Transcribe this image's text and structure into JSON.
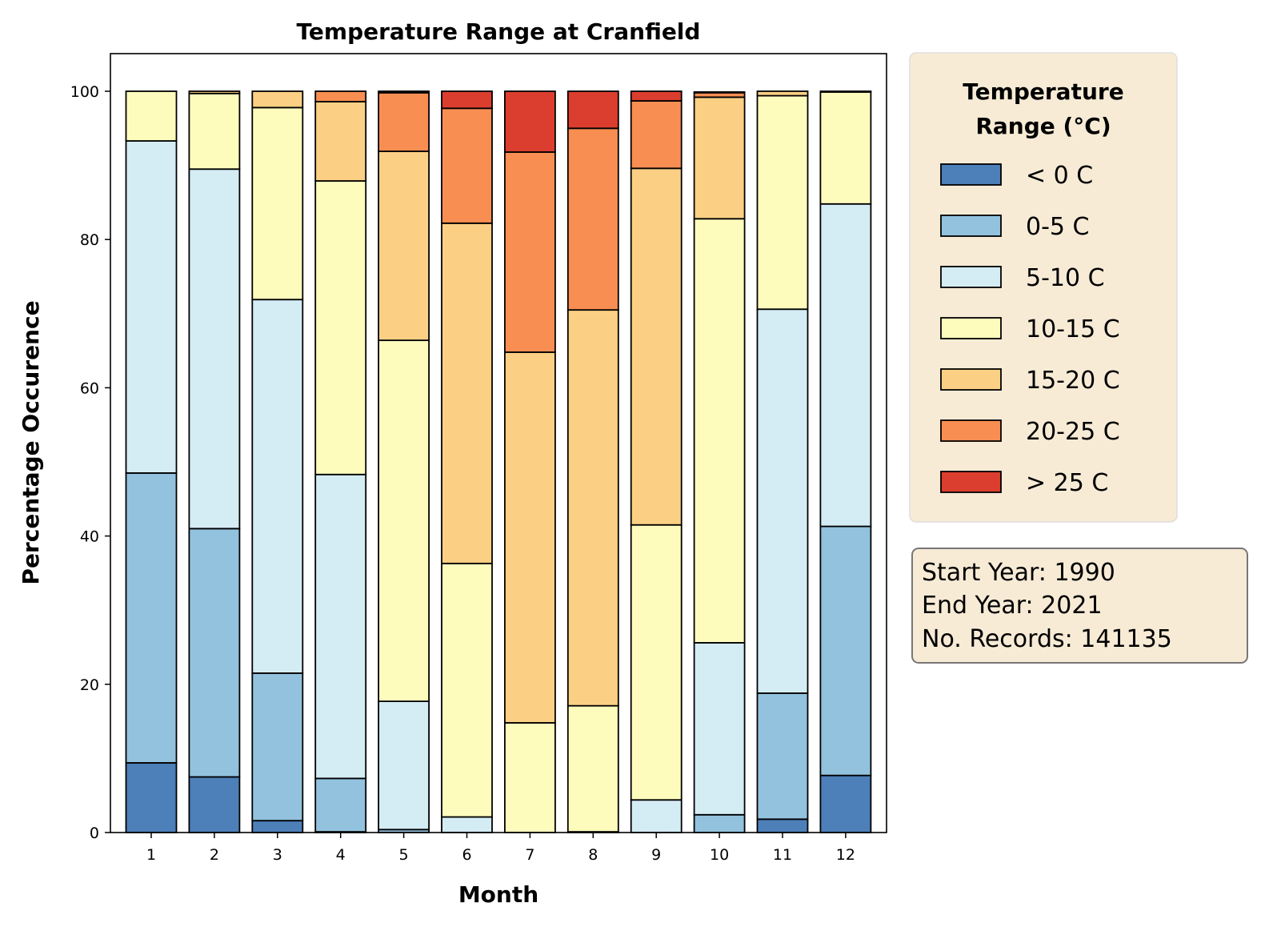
{
  "chart_data": {
    "type": "bar",
    "stacked": true,
    "title": "Temperature Range at Cranfield",
    "xlabel": "Month",
    "ylabel": "Percentage Occurence",
    "ylim": [
      0,
      105
    ],
    "yticks": [
      0,
      20,
      40,
      60,
      80,
      100
    ],
    "categories": [
      "1",
      "2",
      "3",
      "4",
      "5",
      "6",
      "7",
      "8",
      "9",
      "10",
      "11",
      "12"
    ],
    "legend_title": "Temperature Range (°C)",
    "legend_position": "outside-right-top",
    "series": [
      {
        "name": "< 0 C",
        "color": "#4d7fb9",
        "values": [
          9.4,
          7.5,
          1.6,
          0.1,
          0,
          0,
          0,
          0,
          0,
          0,
          1.8,
          7.7
        ]
      },
      {
        "name": "0-5 C",
        "color": "#92c2de",
        "values": [
          39.1,
          33.5,
          19.9,
          7.2,
          0.4,
          0,
          0,
          0,
          0,
          2.4,
          17.0,
          33.6
        ]
      },
      {
        "name": "5-10 C",
        "color": "#d4ecf4",
        "values": [
          44.8,
          48.5,
          50.4,
          41.0,
          17.3,
          2.1,
          0,
          0.1,
          4.4,
          23.2,
          51.8,
          43.5
        ]
      },
      {
        "name": "10-15 C",
        "color": "#fefcbd",
        "values": [
          6.7,
          10.2,
          25.9,
          39.6,
          48.7,
          34.2,
          14.8,
          17.0,
          37.1,
          57.2,
          28.8,
          15.1
        ]
      },
      {
        "name": "15-20 C",
        "color": "#fcd084",
        "values": [
          0,
          0.3,
          2.2,
          10.7,
          25.5,
          45.9,
          50.0,
          53.4,
          48.1,
          16.4,
          0.6,
          0.1
        ]
      },
      {
        "name": "20-25 C",
        "color": "#f88e52",
        "values": [
          0,
          0,
          0,
          1.4,
          7.9,
          15.5,
          27.0,
          24.5,
          9.1,
          0.6,
          0,
          0
        ]
      },
      {
        "name": "> 25 C",
        "color": "#db3e2e",
        "values": [
          0,
          0,
          0,
          0,
          0.2,
          2.3,
          8.2,
          5.0,
          1.3,
          0.1,
          0,
          0
        ]
      }
    ],
    "annotation": [
      "Start Year: 1990",
      "End Year: 2021",
      "No. Records: 141135"
    ]
  }
}
